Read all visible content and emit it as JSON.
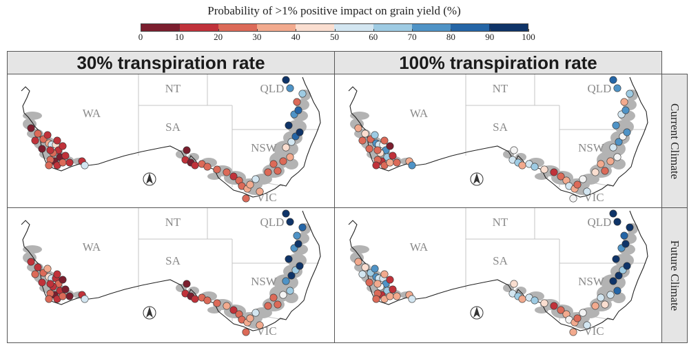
{
  "legend": {
    "title": "Probability of >1% positive impact on grain yield (%)",
    "ticks": [
      "0",
      "10",
      "20",
      "30",
      "40",
      "50",
      "60",
      "70",
      "80",
      "90",
      "100"
    ],
    "colors": [
      "#7b1e2e",
      "#c0323a",
      "#dc6a58",
      "#f2aa8e",
      "#faded0",
      "#f4f4f4",
      "#d3e6f1",
      "#9ecbe3",
      "#4f93c6",
      "#2465a6",
      "#0f3468"
    ]
  },
  "columns": [
    "30% transpiration rate",
    "100% transpiration rate"
  ],
  "rows": [
    "Current Climate",
    "Future Climate"
  ],
  "map_labels": {
    "wa": "WA",
    "nt": "NT",
    "sa": "SA",
    "qld": "QLD",
    "nsw": "NSW",
    "vic": "VIC"
  },
  "map_colors": {
    "region_fill": "#b3b3b3",
    "border": "#c4c4c4",
    "coast": "#222222"
  },
  "panels": [
    {
      "column": 0,
      "row": 0,
      "site_probability_bins": [
        0,
        2,
        1,
        2,
        1,
        3,
        6,
        4,
        1,
        2,
        0,
        1,
        0,
        2,
        1,
        2,
        2,
        1,
        1,
        6,
        1,
        0,
        1,
        1,
        0,
        1,
        0,
        1,
        2,
        2,
        2,
        2,
        1,
        2,
        2,
        3,
        3,
        6,
        3,
        2,
        2,
        2,
        2,
        2,
        3,
        4,
        6,
        9,
        10,
        10,
        8,
        9,
        2,
        7,
        8,
        10
      ]
    },
    {
      "column": 1,
      "row": 0,
      "site_probability_bins": [
        3,
        4,
        2,
        2,
        7,
        8,
        6,
        5,
        8,
        4,
        7,
        1,
        1,
        2,
        2,
        3,
        1,
        2,
        3,
        8,
        0,
        2,
        2,
        2,
        5,
        6,
        7,
        3,
        6,
        7,
        4,
        1,
        2,
        3,
        6,
        3,
        2,
        5,
        6,
        5,
        4,
        3,
        2,
        3,
        5,
        6,
        8,
        5,
        8,
        8,
        6,
        8,
        3,
        7,
        8,
        9
      ]
    },
    {
      "column": 0,
      "row": 1,
      "site_probability_bins": [
        1,
        1,
        2,
        2,
        3,
        4,
        6,
        1,
        2,
        1,
        1,
        0,
        0,
        2,
        1,
        2,
        2,
        0,
        1,
        6,
        0,
        1,
        1,
        1,
        0,
        1,
        0,
        1,
        2,
        2,
        2,
        3,
        1,
        2,
        2,
        3,
        3,
        6,
        3,
        2,
        2,
        2,
        2,
        5,
        7,
        8,
        10,
        7,
        10,
        10,
        8,
        10,
        8,
        9,
        10,
        10
      ]
    },
    {
      "column": 1,
      "row": 1,
      "site_probability_bins": [
        3,
        4,
        6,
        7,
        8,
        8,
        6,
        6,
        8,
        5,
        7,
        1,
        1,
        2,
        3,
        3,
        2,
        3,
        3,
        6,
        1,
        2,
        3,
        3,
        4,
        6,
        7,
        3,
        6,
        7,
        4,
        1,
        2,
        3,
        5,
        3,
        2,
        5,
        6,
        3,
        3,
        6,
        4,
        6,
        9,
        10,
        10,
        7,
        10,
        10,
        8,
        10,
        9,
        10,
        10,
        10
      ]
    }
  ]
}
